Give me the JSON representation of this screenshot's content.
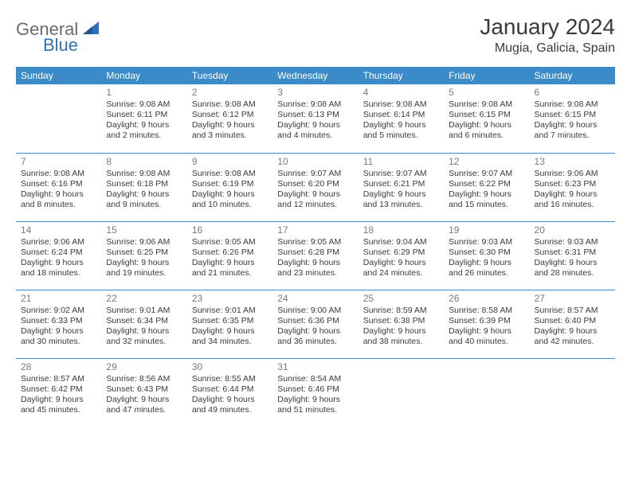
{
  "brand": {
    "part1": "General",
    "part2": "Blue"
  },
  "title": "January 2024",
  "location": "Mugia, Galicia, Spain",
  "colors": {
    "header_bg": "#3b8bc9",
    "header_fg": "#ffffff",
    "rule": "#3b8bc9",
    "daynum": "#7a7a7a",
    "text": "#3a3a3a",
    "logo_gray": "#6b6b6b",
    "logo_blue": "#2d72b8"
  },
  "weekdays": [
    "Sunday",
    "Monday",
    "Tuesday",
    "Wednesday",
    "Thursday",
    "Friday",
    "Saturday"
  ],
  "weeks": [
    [
      null,
      {
        "n": "1",
        "sr": "9:08 AM",
        "ss": "6:11 PM",
        "dl": "9 hours and 2 minutes."
      },
      {
        "n": "2",
        "sr": "9:08 AM",
        "ss": "6:12 PM",
        "dl": "9 hours and 3 minutes."
      },
      {
        "n": "3",
        "sr": "9:08 AM",
        "ss": "6:13 PM",
        "dl": "9 hours and 4 minutes."
      },
      {
        "n": "4",
        "sr": "9:08 AM",
        "ss": "6:14 PM",
        "dl": "9 hours and 5 minutes."
      },
      {
        "n": "5",
        "sr": "9:08 AM",
        "ss": "6:15 PM",
        "dl": "9 hours and 6 minutes."
      },
      {
        "n": "6",
        "sr": "9:08 AM",
        "ss": "6:15 PM",
        "dl": "9 hours and 7 minutes."
      }
    ],
    [
      {
        "n": "7",
        "sr": "9:08 AM",
        "ss": "6:16 PM",
        "dl": "9 hours and 8 minutes."
      },
      {
        "n": "8",
        "sr": "9:08 AM",
        "ss": "6:18 PM",
        "dl": "9 hours and 9 minutes."
      },
      {
        "n": "9",
        "sr": "9:08 AM",
        "ss": "6:19 PM",
        "dl": "9 hours and 10 minutes."
      },
      {
        "n": "10",
        "sr": "9:07 AM",
        "ss": "6:20 PM",
        "dl": "9 hours and 12 minutes."
      },
      {
        "n": "11",
        "sr": "9:07 AM",
        "ss": "6:21 PM",
        "dl": "9 hours and 13 minutes."
      },
      {
        "n": "12",
        "sr": "9:07 AM",
        "ss": "6:22 PM",
        "dl": "9 hours and 15 minutes."
      },
      {
        "n": "13",
        "sr": "9:06 AM",
        "ss": "6:23 PM",
        "dl": "9 hours and 16 minutes."
      }
    ],
    [
      {
        "n": "14",
        "sr": "9:06 AM",
        "ss": "6:24 PM",
        "dl": "9 hours and 18 minutes."
      },
      {
        "n": "15",
        "sr": "9:06 AM",
        "ss": "6:25 PM",
        "dl": "9 hours and 19 minutes."
      },
      {
        "n": "16",
        "sr": "9:05 AM",
        "ss": "6:26 PM",
        "dl": "9 hours and 21 minutes."
      },
      {
        "n": "17",
        "sr": "9:05 AM",
        "ss": "6:28 PM",
        "dl": "9 hours and 23 minutes."
      },
      {
        "n": "18",
        "sr": "9:04 AM",
        "ss": "6:29 PM",
        "dl": "9 hours and 24 minutes."
      },
      {
        "n": "19",
        "sr": "9:03 AM",
        "ss": "6:30 PM",
        "dl": "9 hours and 26 minutes."
      },
      {
        "n": "20",
        "sr": "9:03 AM",
        "ss": "6:31 PM",
        "dl": "9 hours and 28 minutes."
      }
    ],
    [
      {
        "n": "21",
        "sr": "9:02 AM",
        "ss": "6:33 PM",
        "dl": "9 hours and 30 minutes."
      },
      {
        "n": "22",
        "sr": "9:01 AM",
        "ss": "6:34 PM",
        "dl": "9 hours and 32 minutes."
      },
      {
        "n": "23",
        "sr": "9:01 AM",
        "ss": "6:35 PM",
        "dl": "9 hours and 34 minutes."
      },
      {
        "n": "24",
        "sr": "9:00 AM",
        "ss": "6:36 PM",
        "dl": "9 hours and 36 minutes."
      },
      {
        "n": "25",
        "sr": "8:59 AM",
        "ss": "6:38 PM",
        "dl": "9 hours and 38 minutes."
      },
      {
        "n": "26",
        "sr": "8:58 AM",
        "ss": "6:39 PM",
        "dl": "9 hours and 40 minutes."
      },
      {
        "n": "27",
        "sr": "8:57 AM",
        "ss": "6:40 PM",
        "dl": "9 hours and 42 minutes."
      }
    ],
    [
      {
        "n": "28",
        "sr": "8:57 AM",
        "ss": "6:42 PM",
        "dl": "9 hours and 45 minutes."
      },
      {
        "n": "29",
        "sr": "8:56 AM",
        "ss": "6:43 PM",
        "dl": "9 hours and 47 minutes."
      },
      {
        "n": "30",
        "sr": "8:55 AM",
        "ss": "6:44 PM",
        "dl": "9 hours and 49 minutes."
      },
      {
        "n": "31",
        "sr": "8:54 AM",
        "ss": "6:46 PM",
        "dl": "9 hours and 51 minutes."
      },
      null,
      null,
      null
    ]
  ],
  "labels": {
    "sunrise": "Sunrise:",
    "sunset": "Sunset:",
    "daylight": "Daylight:"
  }
}
